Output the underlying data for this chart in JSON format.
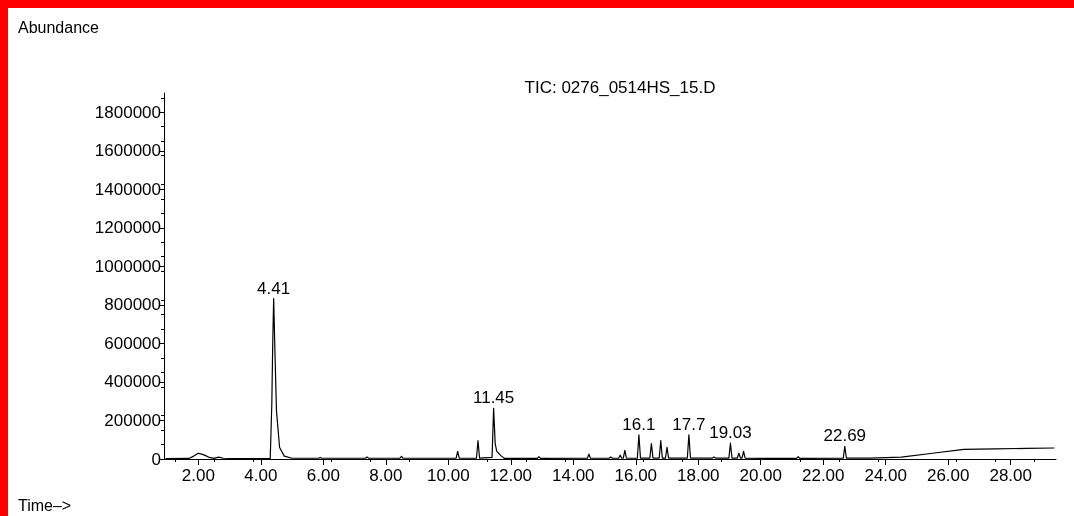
{
  "chart_data": {
    "type": "line",
    "title": "TIC: 0276_0514HS_15.D",
    "xlabel": "Time–>",
    "ylabel": "Abundance",
    "x": [
      0.95,
      1.7,
      1.85,
      2.0,
      2.1,
      2.2,
      2.35,
      2.5,
      2.65,
      2.8,
      3.2,
      4.3,
      4.35,
      4.38,
      4.41,
      4.45,
      4.5,
      4.6,
      4.75,
      5.0,
      5.85,
      5.9,
      5.95,
      7.35,
      7.4,
      7.45,
      8.45,
      8.5,
      8.55,
      10.25,
      10.3,
      10.35,
      10.9,
      10.95,
      11.0,
      11.4,
      11.45,
      11.5,
      11.55,
      11.7,
      11.8,
      12.85,
      12.9,
      12.95,
      14.45,
      14.5,
      14.55,
      15.15,
      15.2,
      15.25,
      15.45,
      15.5,
      15.55,
      15.6,
      15.65,
      15.7,
      16.05,
      16.1,
      16.15,
      16.45,
      16.5,
      16.55,
      16.75,
      16.8,
      16.85,
      16.95,
      17.0,
      17.05,
      17.65,
      17.7,
      17.75,
      18.45,
      18.5,
      18.55,
      18.98,
      19.03,
      19.08,
      19.25,
      19.3,
      19.35,
      19.4,
      19.45,
      19.5,
      20.0,
      21.15,
      21.2,
      21.25,
      22.64,
      22.69,
      22.74,
      23.5,
      24.5,
      25.5,
      26.5,
      27.5,
      28.5,
      29.4
    ],
    "series": [
      {
        "color": "#000000",
        "values": [
          2000,
          3000,
          15000,
          30000,
          25000,
          20000,
          8000,
          3000,
          10000,
          4000,
          2000,
          3000,
          280000,
          600000,
          833000,
          560000,
          250000,
          60000,
          15000,
          4000,
          4000,
          8000,
          4000,
          4000,
          10000,
          4000,
          4000,
          14000,
          4000,
          4000,
          40000,
          4000,
          4000,
          95000,
          5000,
          8000,
          263000,
          80000,
          40000,
          15000,
          3000,
          3000,
          12000,
          3000,
          4000,
          25000,
          4000,
          4000,
          10000,
          4000,
          4000,
          20000,
          4000,
          4000,
          45000,
          4000,
          4000,
          126000,
          5000,
          5000,
          80000,
          5000,
          5000,
          95000,
          5000,
          5000,
          60000,
          5000,
          5000,
          126000,
          5000,
          5000,
          10000,
          5000,
          5000,
          82000,
          5000,
          5000,
          30000,
          5000,
          5000,
          40000,
          5000,
          3000,
          3000,
          12000,
          3000,
          4000,
          66000,
          5000,
          5000,
          10000,
          30000,
          50000,
          53000,
          55000,
          57000
        ]
      }
    ],
    "xlim": [
      0.9,
      29.45
    ],
    "xticks": [
      {
        "value": 2,
        "label": "2.00"
      },
      {
        "value": 4,
        "label": "4.00"
      },
      {
        "value": 6,
        "label": "6.00"
      },
      {
        "value": 8,
        "label": "8.00"
      },
      {
        "value": 10,
        "label": "10.00"
      },
      {
        "value": 12,
        "label": "12.00"
      },
      {
        "value": 14,
        "label": "14.00"
      },
      {
        "value": 16,
        "label": "16.00"
      },
      {
        "value": 18,
        "label": "18.00"
      },
      {
        "value": 20,
        "label": "20.00"
      },
      {
        "value": 22,
        "label": "22.00"
      },
      {
        "value": 24,
        "label": "24.00"
      },
      {
        "value": 26,
        "label": "26.00"
      },
      {
        "value": 28,
        "label": "28.00"
      }
    ],
    "ylim": [
      0,
      1900000
    ],
    "yticks": [
      0,
      200000,
      400000,
      600000,
      800000,
      1000000,
      1200000,
      1400000,
      1600000,
      1800000
    ],
    "annotations": [
      {
        "text": "4.41",
        "x": 4.41,
        "y": 833000
      },
      {
        "text": "11.45",
        "x": 11.45,
        "y": 263000
      },
      {
        "text": "16.1",
        "x": 16.1,
        "y": 126000
      },
      {
        "text": "17.7",
        "x": 17.7,
        "y": 126000
      },
      {
        "text": "19.03",
        "x": 19.03,
        "y": 82000
      },
      {
        "text": "22.69",
        "x": 22.69,
        "y": 66000
      }
    ],
    "grid": false,
    "marker": "none",
    "line_style": "solid"
  }
}
